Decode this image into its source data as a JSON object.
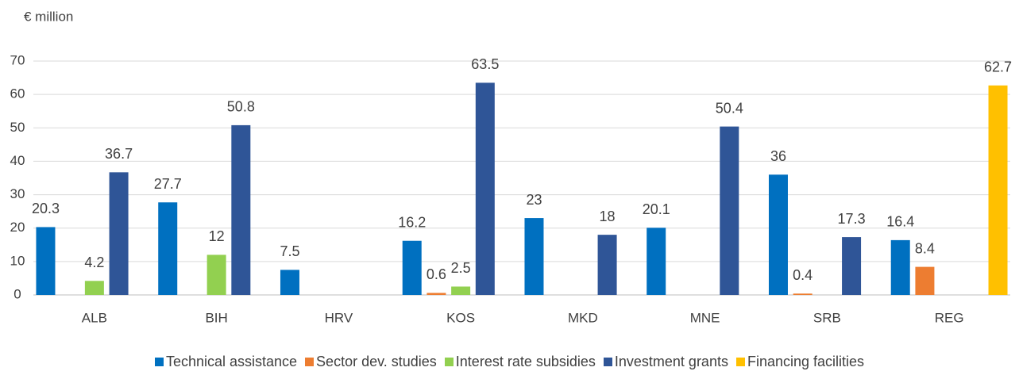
{
  "chart_data": {
    "type": "bar",
    "y_label": "€ million",
    "categories": [
      "ALB",
      "BIH",
      "HRV",
      "KOS",
      "MKD",
      "MNE",
      "SRB",
      "REG"
    ],
    "series": [
      {
        "name": "Technical assistance",
        "color": "#0070c0",
        "values": [
          20.3,
          27.7,
          7.5,
          16.2,
          23,
          20.1,
          36,
          16.4
        ]
      },
      {
        "name": "Sector dev. studies",
        "color": "#ed7d31",
        "values": [
          null,
          null,
          null,
          0.6,
          null,
          null,
          0.4,
          8.4
        ]
      },
      {
        "name": "Interest rate subsidies",
        "color": "#92d050",
        "values": [
          4.2,
          12,
          null,
          2.5,
          null,
          null,
          null,
          null
        ]
      },
      {
        "name": "Investment grants",
        "color": "#2f5597",
        "values": [
          36.7,
          50.8,
          null,
          63.5,
          18,
          50.4,
          17.3,
          null
        ]
      },
      {
        "name": "Financing facilities",
        "color": "#ffc000",
        "values": [
          null,
          null,
          null,
          null,
          null,
          null,
          null,
          62.7
        ]
      }
    ],
    "ylim": [
      0,
      70
    ],
    "yticks": [
      0,
      10,
      20,
      30,
      40,
      50,
      60,
      70
    ],
    "grid": true,
    "legend": "bottom"
  }
}
